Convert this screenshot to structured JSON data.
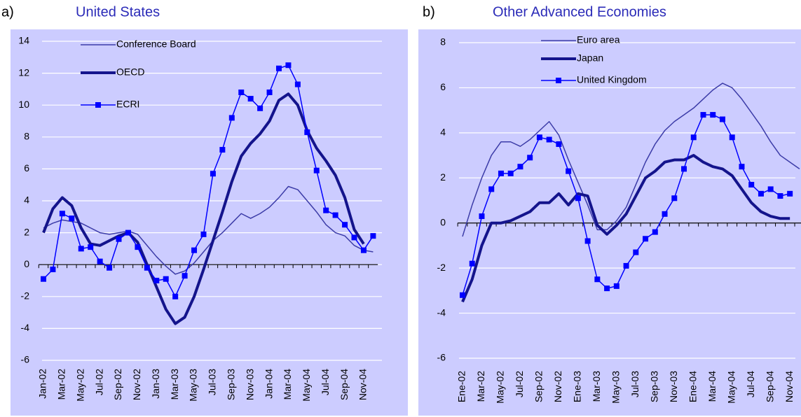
{
  "chart_data": [
    {
      "type": "line",
      "label": "a)",
      "title": "United States",
      "categories": [
        "Jan-02",
        null,
        "Mar-02",
        null,
        "May-02",
        null,
        "Jul-02",
        null,
        "Sep-02",
        null,
        "Nov-02",
        null,
        "Jan-03",
        null,
        "Mar-03",
        null,
        "May-03",
        null,
        "Jul-03",
        null,
        "Sep-03",
        null,
        "Nov-03",
        null,
        "Jan-04",
        null,
        "Mar-04",
        null,
        "May-04",
        null,
        "Jul-04",
        null,
        "Sep-04",
        null,
        "Nov-04",
        null
      ],
      "series": [
        {
          "name": "Conference Board",
          "color": "#3c3ca8",
          "width": 1.5,
          "marker": null,
          "values": [
            2.3,
            2.6,
            2.8,
            2.7,
            2.6,
            2.3,
            2.0,
            1.9,
            2.0,
            2.1,
            1.9,
            1.2,
            0.5,
            -0.1,
            -0.6,
            -0.4,
            0.1,
            0.8,
            1.5,
            2.0,
            2.6,
            3.2,
            2.9,
            3.2,
            3.6,
            4.2,
            4.9,
            4.7,
            4.0,
            3.3,
            2.5,
            2.0,
            1.8,
            1.2,
            0.9,
            0.8
          ]
        },
        {
          "name": "OECD",
          "color": "#14148c",
          "width": 4,
          "marker": null,
          "values": [
            2.0,
            3.5,
            4.2,
            3.7,
            2.3,
            1.3,
            1.2,
            1.5,
            1.8,
            2.0,
            1.4,
            0.0,
            -1.4,
            -2.8,
            -3.7,
            -3.3,
            -2.0,
            -0.3,
            1.5,
            3.3,
            5.2,
            6.8,
            7.6,
            8.2,
            9.0,
            10.3,
            10.7,
            10.0,
            8.4,
            7.3,
            6.5,
            5.6,
            4.2,
            2.2,
            1.3,
            null
          ]
        },
        {
          "name": "ECRI",
          "color": "#0000ff",
          "width": 1.5,
          "marker": "square",
          "values": [
            -0.9,
            -0.3,
            3.2,
            2.9,
            1.0,
            1.1,
            0.2,
            -0.2,
            1.6,
            2.0,
            1.1,
            -0.2,
            -1.0,
            -0.9,
            -2.0,
            -0.7,
            0.9,
            1.9,
            5.7,
            7.2,
            9.2,
            10.8,
            10.4,
            9.8,
            10.8,
            12.3,
            12.5,
            11.3,
            8.3,
            5.9,
            3.4,
            3.1,
            2.5,
            1.7,
            0.9,
            1.8
          ]
        }
      ],
      "ylim": [
        -6,
        14
      ],
      "yticks": [
        -6,
        -4,
        -2,
        0,
        2,
        4,
        6,
        8,
        10,
        12,
        14
      ],
      "grid": true
    },
    {
      "type": "line",
      "label": "b)",
      "title": "Other Advanced Economies",
      "categories": [
        "Ene-02",
        null,
        "Mar-02",
        null,
        "May-02",
        null,
        "Jul-02",
        null,
        "Sep-02",
        null,
        "Nov-02",
        null,
        "Ene-03",
        null,
        "Mar-03",
        null,
        "May-03",
        null,
        "Jul-03",
        null,
        "Sep-03",
        null,
        "Nov-03",
        null,
        "Ene-04",
        null,
        "Mar-04",
        null,
        "May-04",
        null,
        "Jul-04",
        null,
        "Sep-04",
        null,
        "Nov-04",
        null
      ],
      "series": [
        {
          "name": "Euro area",
          "color": "#3c3ca8",
          "width": 1.5,
          "marker": null,
          "values": [
            -0.6,
            0.8,
            2.0,
            3.0,
            3.6,
            3.6,
            3.4,
            3.7,
            4.1,
            4.5,
            3.9,
            2.8,
            1.8,
            0.8,
            -0.3,
            -0.3,
            0.1,
            0.7,
            1.7,
            2.7,
            3.5,
            4.1,
            4.5,
            4.8,
            5.1,
            5.5,
            5.9,
            6.2,
            6.0,
            5.5,
            4.9,
            4.3,
            3.6,
            3.0,
            2.7,
            2.4
          ]
        },
        {
          "name": "Japan",
          "color": "#14148c",
          "width": 4,
          "marker": null,
          "values": [
            -3.5,
            -2.5,
            -1.0,
            0.0,
            0.0,
            0.1,
            0.3,
            0.5,
            0.9,
            0.9,
            1.3,
            0.8,
            1.3,
            1.2,
            -0.1,
            -0.5,
            -0.1,
            0.4,
            1.2,
            2.0,
            2.3,
            2.7,
            2.8,
            2.8,
            3.0,
            2.7,
            2.5,
            2.4,
            2.1,
            1.5,
            0.9,
            0.5,
            0.3,
            0.2,
            0.2,
            null
          ]
        },
        {
          "name": "United Kingdom",
          "color": "#0000ff",
          "width": 1.5,
          "marker": "square",
          "values": [
            -3.2,
            -1.8,
            0.3,
            1.5,
            2.2,
            2.2,
            2.5,
            2.9,
            3.8,
            3.7,
            3.5,
            2.3,
            1.1,
            -0.8,
            -2.5,
            -2.9,
            -2.8,
            -1.9,
            -1.3,
            -0.7,
            -0.4,
            0.4,
            1.1,
            2.4,
            3.8,
            4.8,
            4.8,
            4.6,
            3.8,
            2.5,
            1.7,
            1.3,
            1.5,
            1.2,
            1.3,
            null
          ]
        }
      ],
      "ylim": [
        -6,
        8
      ],
      "yticks": [
        -6,
        -4,
        -2,
        0,
        2,
        4,
        6,
        8
      ],
      "grid": true
    }
  ]
}
